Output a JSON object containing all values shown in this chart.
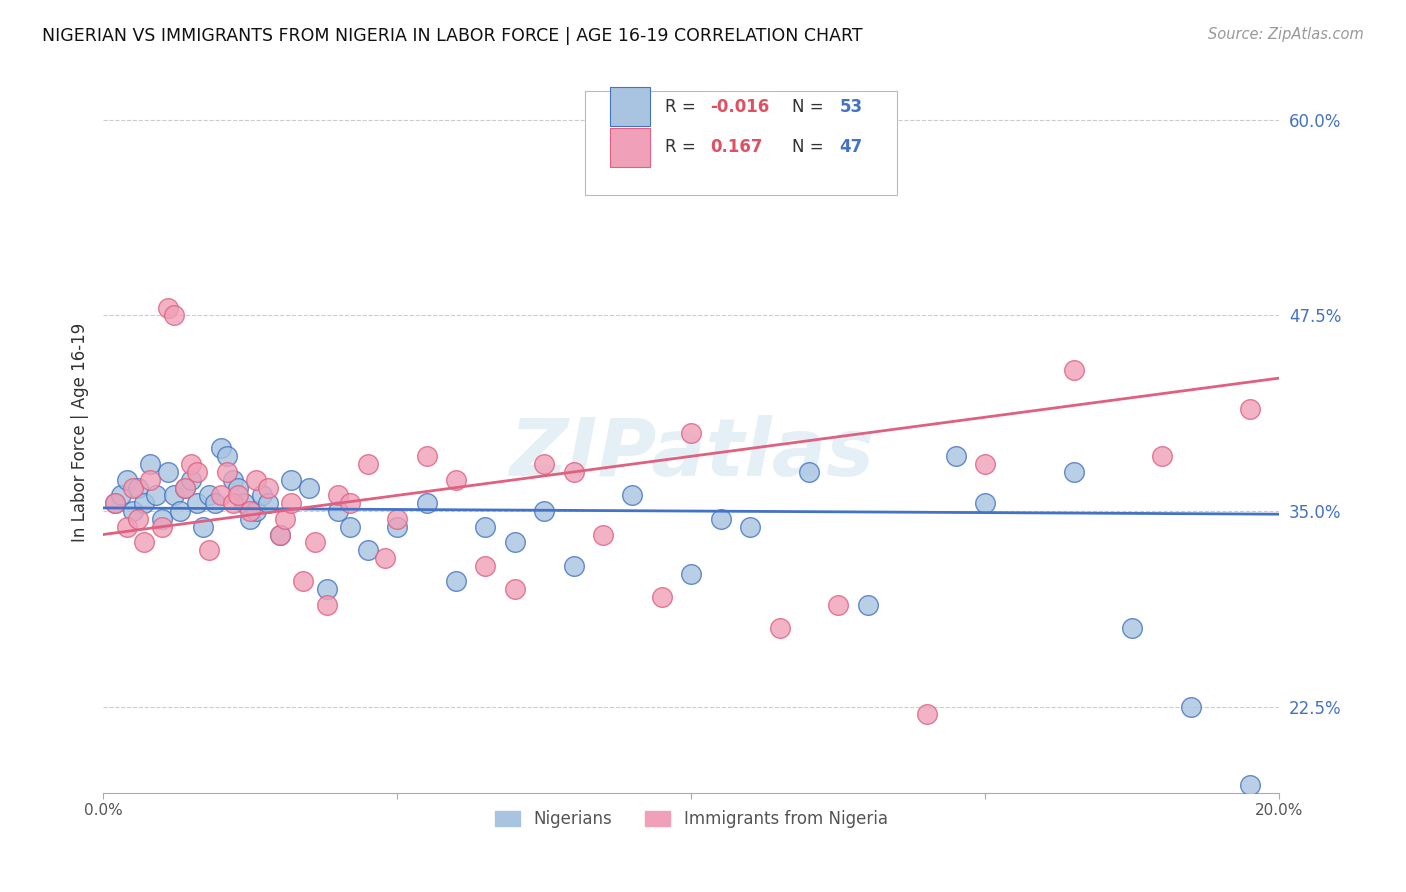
{
  "title": "NIGERIAN VS IMMIGRANTS FROM NIGERIA IN LABOR FORCE | AGE 16-19 CORRELATION CHART",
  "source": "Source: ZipAtlas.com",
  "ylabel": "In Labor Force | Age 16-19",
  "xlim": [
    0.0,
    20.0
  ],
  "ylim": [
    17.0,
    63.0
  ],
  "yticks": [
    22.5,
    35.0,
    47.5,
    60.0
  ],
  "ytick_labels": [
    "22.5%",
    "35.0%",
    "47.5%",
    "60.0%"
  ],
  "watermark": "ZIPatlas",
  "blue_color": "#a8c4e0",
  "pink_color": "#f0a0b8",
  "line_blue": "#4472c4",
  "line_pink": "#e06080",
  "nigerian_x": [
    0.2,
    0.3,
    0.4,
    0.5,
    0.6,
    0.7,
    0.8,
    0.9,
    1.0,
    1.1,
    1.2,
    1.3,
    1.4,
    1.5,
    1.6,
    1.7,
    1.8,
    1.9,
    2.0,
    2.1,
    2.2,
    2.3,
    2.4,
    2.5,
    2.6,
    2.7,
    2.8,
    3.0,
    3.2,
    3.5,
    3.8,
    4.0,
    4.2,
    4.5,
    5.0,
    5.5,
    6.0,
    6.5,
    7.0,
    7.5,
    8.0,
    9.0,
    10.0,
    10.5,
    11.0,
    12.0,
    13.0,
    14.5,
    15.0,
    16.5,
    17.5,
    18.5,
    19.5
  ],
  "nigerian_y": [
    35.5,
    36.0,
    37.0,
    35.0,
    36.5,
    35.5,
    38.0,
    36.0,
    34.5,
    37.5,
    36.0,
    35.0,
    36.5,
    37.0,
    35.5,
    34.0,
    36.0,
    35.5,
    39.0,
    38.5,
    37.0,
    36.5,
    35.5,
    34.5,
    35.0,
    36.0,
    35.5,
    33.5,
    37.0,
    36.5,
    30.0,
    35.0,
    34.0,
    32.5,
    34.0,
    35.5,
    30.5,
    34.0,
    33.0,
    35.0,
    31.5,
    36.0,
    31.0,
    34.5,
    34.0,
    37.5,
    29.0,
    38.5,
    35.5,
    37.5,
    27.5,
    22.5,
    17.5
  ],
  "immigrant_x": [
    0.2,
    0.4,
    0.5,
    0.6,
    0.7,
    0.8,
    1.0,
    1.1,
    1.2,
    1.4,
    1.5,
    1.6,
    1.8,
    2.0,
    2.1,
    2.2,
    2.3,
    2.5,
    2.6,
    2.8,
    3.0,
    3.1,
    3.2,
    3.4,
    3.6,
    3.8,
    4.0,
    4.2,
    4.5,
    4.8,
    5.0,
    5.5,
    6.0,
    6.5,
    7.0,
    7.5,
    8.0,
    8.5,
    9.5,
    10.0,
    11.5,
    12.5,
    14.0,
    15.0,
    16.5,
    18.0,
    19.5
  ],
  "immigrant_y": [
    35.5,
    34.0,
    36.5,
    34.5,
    33.0,
    37.0,
    34.0,
    48.0,
    47.5,
    36.5,
    38.0,
    37.5,
    32.5,
    36.0,
    37.5,
    35.5,
    36.0,
    35.0,
    37.0,
    36.5,
    33.5,
    34.5,
    35.5,
    30.5,
    33.0,
    29.0,
    36.0,
    35.5,
    38.0,
    32.0,
    34.5,
    38.5,
    37.0,
    31.5,
    30.0,
    38.0,
    37.5,
    33.5,
    29.5,
    40.0,
    27.5,
    29.0,
    22.0,
    38.0,
    44.0,
    38.5,
    41.5
  ]
}
